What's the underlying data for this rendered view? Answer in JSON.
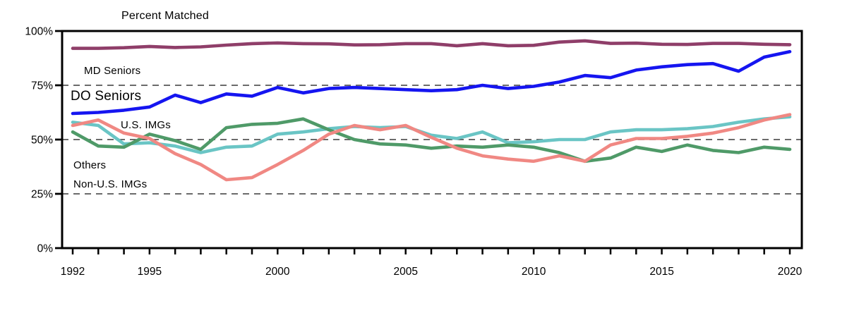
{
  "title": "Percent Matched",
  "chart_data": {
    "type": "line",
    "title": "Percent Matched",
    "x": [
      1992,
      1993,
      1994,
      1995,
      1996,
      1997,
      1998,
      1999,
      2000,
      2001,
      2002,
      2003,
      2004,
      2005,
      2006,
      2007,
      2008,
      2009,
      2010,
      2011,
      2012,
      2013,
      2014,
      2015,
      2016,
      2017,
      2018,
      2019,
      2020
    ],
    "xlim": [
      1992,
      2020
    ],
    "ylim": [
      0,
      100
    ],
    "grid": "dashed horizontal lines at 25%, 50%, 75%",
    "y_ticks": [
      0,
      25,
      50,
      75,
      100
    ],
    "y_tick_labels": [
      "0%",
      "25%",
      "50%",
      "75%",
      "100%"
    ],
    "x_labeled_years": [
      1992,
      1995,
      2000,
      2005,
      2010,
      2015,
      2020
    ],
    "x_tick_labels": [
      "1992",
      "1995",
      "2000",
      "2005",
      "2010",
      "2015",
      "2020"
    ],
    "legend_position": "inline labels on plot",
    "series": [
      {
        "name": "U.S. IMGs",
        "color": "#6ac5c5",
        "values": [
          58,
          56.5,
          48,
          48.5,
          47,
          44,
          46.5,
          47,
          52.5,
          53.5,
          55,
          56,
          55.5,
          56,
          52,
          50.5,
          53.5,
          48.5,
          49,
          50,
          50,
          53.5,
          54.5,
          54.5,
          55,
          56,
          58,
          59.5,
          60.5
        ]
      },
      {
        "name": "Others",
        "color": "#4f9a68",
        "values": [
          53.5,
          47,
          46.5,
          52.5,
          49.5,
          45.5,
          55.5,
          57,
          57.5,
          59.5,
          54.5,
          50,
          48,
          47.5,
          46,
          47,
          46.5,
          47.5,
          46.5,
          44,
          40,
          41.5,
          46.5,
          44.5,
          47.5,
          45,
          44,
          46.5,
          45.5
        ]
      },
      {
        "name": "Non-U.S. IMGs",
        "color": "#f08883",
        "values": [
          56.5,
          59,
          53,
          50.5,
          43.5,
          38.5,
          31.5,
          32.5,
          38.5,
          45,
          52.5,
          56.5,
          54.5,
          56.5,
          51,
          46,
          42.5,
          41,
          40,
          42.5,
          40,
          47.5,
          50.5,
          50.5,
          51.5,
          53,
          55.5,
          59,
          61.5
        ]
      },
      {
        "name": "DO Seniors",
        "color": "#1515f0",
        "values": [
          62,
          62.5,
          63.5,
          65,
          70.5,
          67,
          71,
          70,
          74,
          71.5,
          73.5,
          74,
          73.5,
          73,
          72.5,
          73,
          75,
          73.5,
          74.5,
          76.5,
          79.5,
          78.5,
          82,
          83.5,
          84.5,
          85,
          81.5,
          88,
          90.5
        ]
      },
      {
        "name": "MD Seniors",
        "color": "#8f3e69",
        "values": [
          92,
          92,
          92.3,
          92.9,
          92.4,
          92.7,
          93.5,
          94.2,
          94.5,
          94.2,
          94.1,
          93.6,
          93.7,
          94.2,
          94.2,
          93.2,
          94.2,
          93.2,
          93.4,
          94.9,
          95.5,
          94.3,
          94.4,
          93.9,
          93.8,
          94.3,
          94.3,
          93.9,
          93.7
        ]
      }
    ],
    "axis_color": "#000000",
    "gridline_color": "#3a3a3a"
  }
}
